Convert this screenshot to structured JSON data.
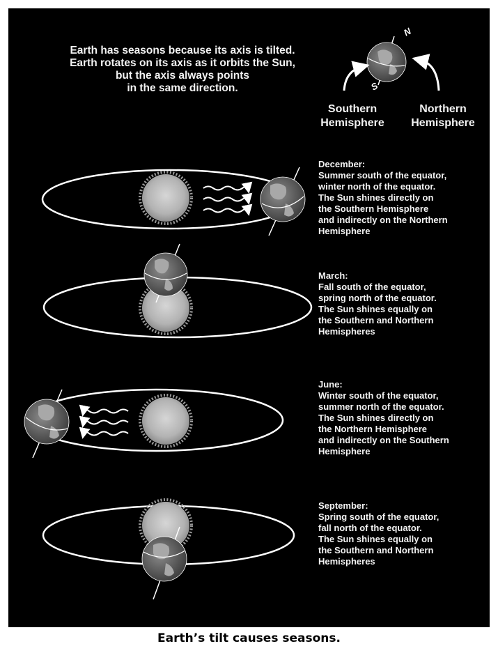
{
  "intro": [
    "Earth has seasons because its axis is tilted.",
    "Earth rotates on its axis as it orbits the Sun,",
    "but the axis always points",
    "in the same direction."
  ],
  "hemisphere_labels": {
    "southern": [
      "Southern",
      "Hemisphere"
    ],
    "northern": [
      "Northern",
      "Hemisphere"
    ]
  },
  "axis_labels": {
    "north": "N",
    "south": "S"
  },
  "seasons": [
    {
      "month": "December:",
      "lines": [
        "Summer south of the equator,",
        "winter north of the equator.",
        "The Sun shines directly on",
        "the Southern Hemisphere",
        "and indirectly on the Northern",
        "Hemisphere"
      ]
    },
    {
      "month": "March:",
      "lines": [
        "Fall south of the equator,",
        "spring north of the equator.",
        "The Sun shines equally on",
        "the Southern and Northern",
        "Hemispheres"
      ]
    },
    {
      "month": "June:",
      "lines": [
        "Winter south of the equator,",
        "summer north of the equator.",
        "The Sun shines directly on",
        "the Northern Hemisphere",
        "and indirectly on the Southern",
        "Hemisphere"
      ]
    },
    {
      "month": "September:",
      "lines": [
        "Spring south of the equator,",
        "fall north of the equator.",
        "The Sun shines equally on",
        "the Southern and Northern",
        "Hemispheres"
      ]
    }
  ],
  "caption": "Earth’s tilt causes seasons.",
  "colors": {
    "background": "#000000",
    "text": "#f2f2f2",
    "sun": "#bdbdbd",
    "earth_ocean": "#555555",
    "earth_land": "#9a9a9a"
  }
}
